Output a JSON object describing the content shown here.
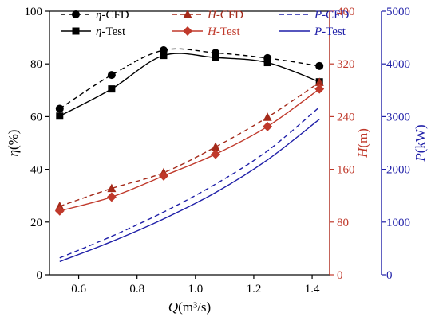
{
  "chart_data": {
    "type": "line",
    "x": [
      0.535,
      0.713,
      0.891,
      1.069,
      1.247,
      1.425
    ],
    "xlabel": {
      "prefix": "Q",
      "unit": "(m³/s)"
    },
    "xlim": [
      0.5,
      1.46
    ],
    "xticks": [
      "0.6",
      "0.8",
      "1.0",
      "1.2",
      "1.4"
    ],
    "axes": [
      {
        "id": "eta",
        "prefix": "η",
        "unit": "(%)",
        "ylim": [
          0,
          100
        ],
        "ticks": [
          "0",
          "20",
          "40",
          "60",
          "80",
          "100"
        ],
        "color": "#000000"
      },
      {
        "id": "H",
        "prefix": "H",
        "unit": "(m)",
        "ylim": [
          0,
          400
        ],
        "ticks": [
          "0",
          "80",
          "160",
          "240",
          "320",
          "400"
        ],
        "color": "#c0392b"
      },
      {
        "id": "P",
        "prefix": "P",
        "unit": "(kW)",
        "ylim": [
          0,
          5000
        ],
        "ticks": [
          "0",
          "1000",
          "2000",
          "3000",
          "4000",
          "5000"
        ],
        "color": "#1f1fa8"
      }
    ],
    "series": [
      {
        "name": "η-CFD",
        "axis": "eta",
        "values": [
          63,
          75.8,
          85.2,
          84.2,
          82.2,
          79.2
        ],
        "color": "#000000",
        "dash": true,
        "marker": "circle"
      },
      {
        "name": "η-Test",
        "axis": "eta",
        "values": [
          60.2,
          70.5,
          83.2,
          82.4,
          80.5,
          73.2
        ],
        "color": "#000000",
        "dash": false,
        "marker": "square"
      },
      {
        "name": "H-CFD",
        "axis": "H",
        "values": [
          104,
          131,
          155,
          194,
          239,
          292
        ],
        "color": "#a52a1a",
        "dash": true,
        "marker": "triangle"
      },
      {
        "name": "H-Test",
        "axis": "H",
        "values": [
          97,
          118,
          150,
          183,
          225,
          282
        ],
        "color": "#c0392b",
        "dash": false,
        "marker": "diamond"
      },
      {
        "name": "P-CFD",
        "axis": "P",
        "values": [
          320,
          730,
          1190,
          1720,
          2350,
          3180
        ],
        "color": "#1f1fa8",
        "dash": true,
        "marker": "none"
      },
      {
        "name": "P-Test",
        "axis": "P",
        "values": [
          250,
          630,
          1060,
          1560,
          2180,
          2950
        ],
        "color": "#1f1fa8",
        "dash": false,
        "marker": "none"
      }
    ],
    "legend": "top, inside plot"
  }
}
